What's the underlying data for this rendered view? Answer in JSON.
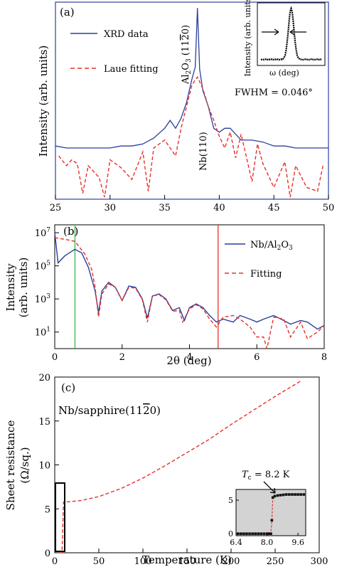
{
  "chart_data": [
    {
      "panel": "(a)",
      "type": "line",
      "xlabel": "",
      "ylabel": "Intensity  (arb. units)",
      "xlim": [
        25,
        50
      ],
      "xticks": [
        "25",
        "30",
        "35",
        "40",
        "45",
        "50"
      ],
      "ylog": true,
      "yticks_shown": false,
      "legend": {
        "position": "top-left",
        "entries": [
          "XRD data",
          "Laue fitting"
        ]
      },
      "series": [
        {
          "name": "XRD data",
          "color": "#2b3f9e",
          "style": "solid",
          "x": [
            25,
            26,
            27,
            28,
            29,
            30,
            31,
            32,
            33,
            34,
            35,
            35.5,
            36,
            36.5,
            37,
            37.5,
            37.8,
            38,
            38.2,
            38.5,
            39,
            39.5,
            40,
            40.5,
            41,
            42,
            43,
            44,
            45,
            46,
            47,
            48,
            49,
            50
          ],
          "y": [
            0.27,
            0.26,
            0.26,
            0.26,
            0.26,
            0.26,
            0.27,
            0.27,
            0.28,
            0.31,
            0.36,
            0.4,
            0.36,
            0.41,
            0.49,
            0.61,
            0.67,
            0.97,
            0.66,
            0.55,
            0.47,
            0.36,
            0.34,
            0.36,
            0.36,
            0.3,
            0.3,
            0.29,
            0.27,
            0.27,
            0.26,
            0.26,
            0.26,
            0.26
          ]
        },
        {
          "name": "Laue fitting",
          "color": "#e8302a",
          "style": "dashed",
          "x": [
            25.3,
            26,
            26.5,
            27,
            27.5,
            28,
            29,
            29.5,
            30,
            31,
            32,
            33,
            33.5,
            34,
            35,
            36,
            36.5,
            37,
            37.5,
            38,
            38.5,
            39,
            39.5,
            40,
            40.5,
            41,
            41.5,
            42,
            43,
            43.5,
            44,
            45,
            46,
            46.5,
            47,
            48,
            49,
            49.5
          ],
          "y": [
            0.22,
            0.17,
            0.2,
            0.18,
            0.03,
            0.17,
            0.11,
            0.01,
            0.2,
            0.16,
            0.1,
            0.24,
            0.04,
            0.26,
            0.3,
            0.22,
            0.36,
            0.47,
            0.58,
            0.62,
            0.56,
            0.47,
            0.4,
            0.32,
            0.26,
            0.34,
            0.21,
            0.33,
            0.09,
            0.28,
            0.18,
            0.06,
            0.19,
            0.01,
            0.17,
            0.06,
            0.04,
            0.17
          ]
        }
      ],
      "annotations": [
        "Al2O3 (1120)",
        "Nb(110)",
        "FWHM = 0.046°"
      ],
      "inset": {
        "xlabel": "ω (deg)",
        "ylabel": "Intensity (arb. units)"
      }
    },
    {
      "panel": "(b)",
      "type": "line",
      "xlabel": "2θ (deg)",
      "ylabel": "Intensity (arb. units)",
      "xlim": [
        0,
        8
      ],
      "xticks": [
        "0",
        "2",
        "4",
        "6",
        "8"
      ],
      "ylog": true,
      "ylim": [
        1,
        30000000
      ],
      "yticks": [
        "10^1",
        "10^3",
        "10^5",
        "10^7"
      ],
      "legend": {
        "position": "top-right",
        "entries": [
          "Nb/Al2O3",
          "Fitting"
        ]
      },
      "vertical_lines": [
        {
          "x": 0.6,
          "color": "#3cb44b"
        },
        {
          "x": 4.85,
          "color": "#e8302a"
        }
      ],
      "series": [
        {
          "name": "Nb/Al2O3",
          "color": "#2b3f9e",
          "style": "solid",
          "x": [
            0,
            0.1,
            0.3,
            0.6,
            0.8,
            1.0,
            1.2,
            1.3,
            1.4,
            1.6,
            1.8,
            2.0,
            2.2,
            2.4,
            2.6,
            2.75,
            2.9,
            3.1,
            3.3,
            3.5,
            3.7,
            3.85,
            4.0,
            4.2,
            4.4,
            4.6,
            4.8,
            5.0,
            5.3,
            5.5,
            5.8,
            6.0,
            6.2,
            6.5,
            6.8,
            7.0,
            7.3,
            7.5,
            7.8,
            8.0
          ],
          "y": [
            10000000,
            150000,
            400000,
            1000000,
            600000,
            80000,
            3000,
            150,
            3000,
            10000,
            5000,
            800,
            6000,
            5000,
            1000,
            70,
            1500,
            2000,
            1000,
            200,
            300,
            50,
            300,
            500,
            300,
            100,
            40,
            60,
            40,
            100,
            60,
            40,
            60,
            100,
            50,
            30,
            50,
            40,
            15,
            25
          ]
        },
        {
          "name": "Fitting",
          "color": "#e8302a",
          "style": "dashed",
          "x": [
            0,
            0.3,
            0.6,
            0.9,
            1.1,
            1.2,
            1.3,
            1.4,
            1.6,
            1.8,
            2.0,
            2.2,
            2.4,
            2.6,
            2.75,
            2.9,
            3.1,
            3.3,
            3.5,
            3.7,
            3.8,
            4.0,
            4.2,
            4.4,
            4.6,
            4.8,
            5.0,
            5.3,
            5.5,
            5.8,
            6.0,
            6.2,
            6.3,
            6.5,
            6.8,
            7.0,
            7.3,
            7.5,
            7.8,
            8.0
          ],
          "y": [
            5000000,
            4000000,
            3000000,
            500000,
            60000,
            5000,
            80,
            2000,
            8000,
            5000,
            800,
            5000,
            4500,
            900,
            40,
            1500,
            1800,
            900,
            180,
            200,
            40,
            250,
            450,
            250,
            60,
            20,
            80,
            100,
            60,
            20,
            5,
            5,
            1,
            80,
            60,
            5,
            40,
            4,
            10,
            25
          ]
        }
      ]
    },
    {
      "panel": "(c)",
      "type": "line",
      "xlabel": "Temperature (K)",
      "ylabel": "Sheet resistance (Ω/sq.)",
      "xlim": [
        0,
        300
      ],
      "ylim": [
        0,
        20
      ],
      "xticks": [
        "0",
        "50",
        "100",
        "150",
        "200",
        "250",
        "300"
      ],
      "yticks": [
        "0",
        "5",
        "10",
        "15",
        "20"
      ],
      "sample_label": "Nb/sapphire(1120)",
      "series": [
        {
          "name": "",
          "color": "#e8302a",
          "style": "dashed",
          "x": [
            5,
            8.2,
            10,
            15,
            20,
            30,
            50,
            75,
            100,
            125,
            150,
            175,
            200,
            225,
            250,
            280
          ],
          "y": [
            0,
            0,
            5.8,
            5.8,
            5.85,
            5.95,
            6.4,
            7.3,
            8.5,
            9.9,
            11.4,
            12.9,
            14.6,
            16.2,
            17.8,
            19.6
          ]
        }
      ],
      "inset": {
        "xticks": [
          "6.4",
          "8.0",
          "9.6"
        ],
        "yticks": [
          "0",
          "5"
        ],
        "xlim": [
          6.4,
          10.0
        ],
        "ylim": [
          -0.3,
          6.6
        ],
        "background": "#d3d3d3",
        "annotation_math": "T",
        "annotation_sub": "c",
        "annotation": " = 8.2 K",
        "points_x": [
          6.5,
          6.65,
          6.8,
          6.95,
          7.1,
          7.25,
          7.4,
          7.55,
          7.7,
          7.85,
          8.0,
          8.1,
          8.2,
          8.25,
          8.3,
          8.4,
          8.55,
          8.7,
          8.85,
          9.0,
          9.15,
          9.3,
          9.45,
          9.6,
          9.75,
          9.9
        ],
        "points_y": [
          0,
          0,
          0,
          0,
          0,
          0,
          0,
          0,
          0,
          0,
          0,
          0,
          0,
          2,
          5.4,
          5.6,
          5.7,
          5.75,
          5.8,
          5.85,
          5.85,
          5.85,
          5.85,
          5.85,
          5.85,
          5.85
        ]
      }
    }
  ]
}
